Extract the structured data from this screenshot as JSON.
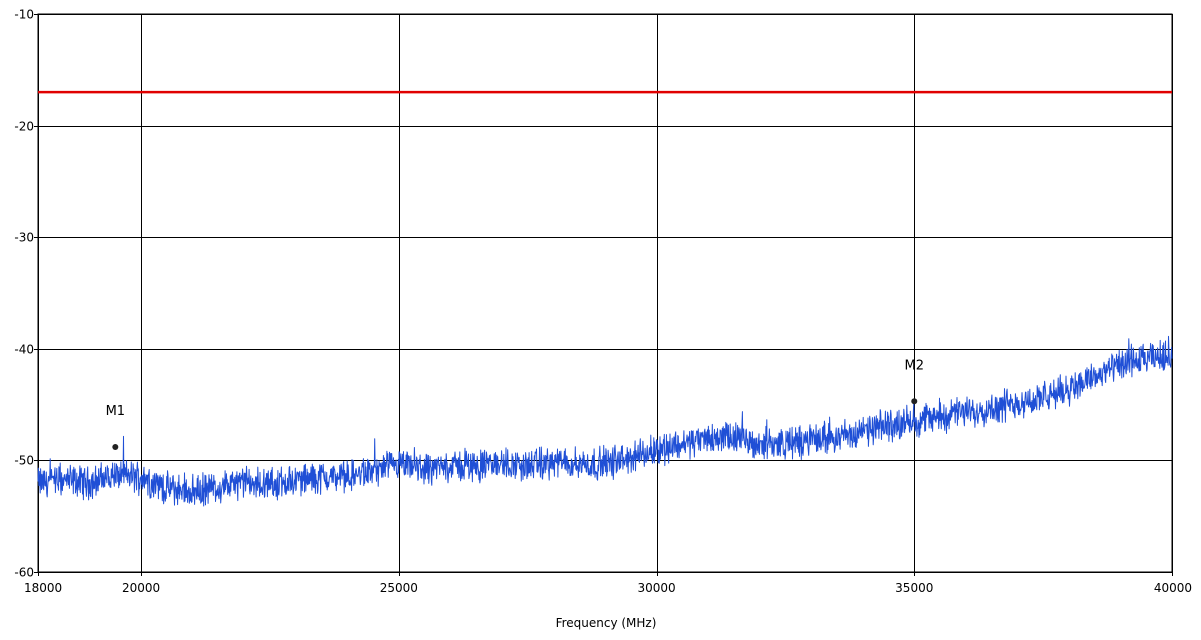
{
  "chart_data": {
    "type": "line",
    "title": "",
    "xlabel": "Frequency (MHz)",
    "ylabel": "",
    "xlim": [
      18000,
      40000
    ],
    "ylim": [
      -60,
      -10
    ],
    "grid": true,
    "x_gridlines": [
      18000,
      20000,
      25000,
      30000,
      35000,
      40000
    ],
    "x_ticks": [
      {
        "value": 18000,
        "label": "18000"
      },
      {
        "value": 20000,
        "label": "20000"
      },
      {
        "value": 25000,
        "label": "25000"
      },
      {
        "value": 30000,
        "label": "30000"
      },
      {
        "value": 35000,
        "label": "35000"
      },
      {
        "value": 40000,
        "label": "40000"
      }
    ],
    "y_ticks": [
      {
        "value": -10,
        "label": "-10"
      },
      {
        "value": -20,
        "label": "-20"
      },
      {
        "value": -30,
        "label": "-30"
      },
      {
        "value": -40,
        "label": "-40"
      },
      {
        "value": -50,
        "label": "-50"
      },
      {
        "value": -60,
        "label": "-60"
      }
    ],
    "limit_line": {
      "y": -17,
      "color": "#e00000"
    },
    "trace": {
      "color": "#1f4fd6",
      "x": [
        18000,
        18500,
        19000,
        19500,
        20000,
        20500,
        21000,
        21500,
        22000,
        22500,
        23000,
        23500,
        24000,
        24500,
        25000,
        25500,
        26000,
        26500,
        27000,
        27500,
        28000,
        28500,
        29000,
        29500,
        30000,
        30500,
        31000,
        31500,
        32000,
        32500,
        33000,
        33500,
        34000,
        34500,
        35000,
        35500,
        36000,
        36500,
        37000,
        37500,
        38000,
        38500,
        39000,
        39500,
        40000
      ],
      "y": [
        -52,
        -51.8,
        -52,
        -51.3,
        -51.5,
        -52.5,
        -52.8,
        -52.4,
        -52,
        -52.2,
        -51.8,
        -51.5,
        -51.5,
        -51,
        -50.5,
        -50.8,
        -50.5,
        -50.5,
        -50.3,
        -50.5,
        -50.2,
        -50.3,
        -50.3,
        -49.8,
        -49,
        -48.5,
        -48,
        -48,
        -48.5,
        -48.5,
        -48.2,
        -47.8,
        -47.5,
        -46.8,
        -46.5,
        -46,
        -45.7,
        -45.3,
        -44.8,
        -44.5,
        -43.5,
        -42.5,
        -41.5,
        -41,
        -40.5
      ]
    },
    "markers": [
      {
        "label": "M1",
        "x": 19500,
        "y": -48.8
      },
      {
        "label": "M2",
        "x": 35000,
        "y": -44.7
      }
    ]
  }
}
